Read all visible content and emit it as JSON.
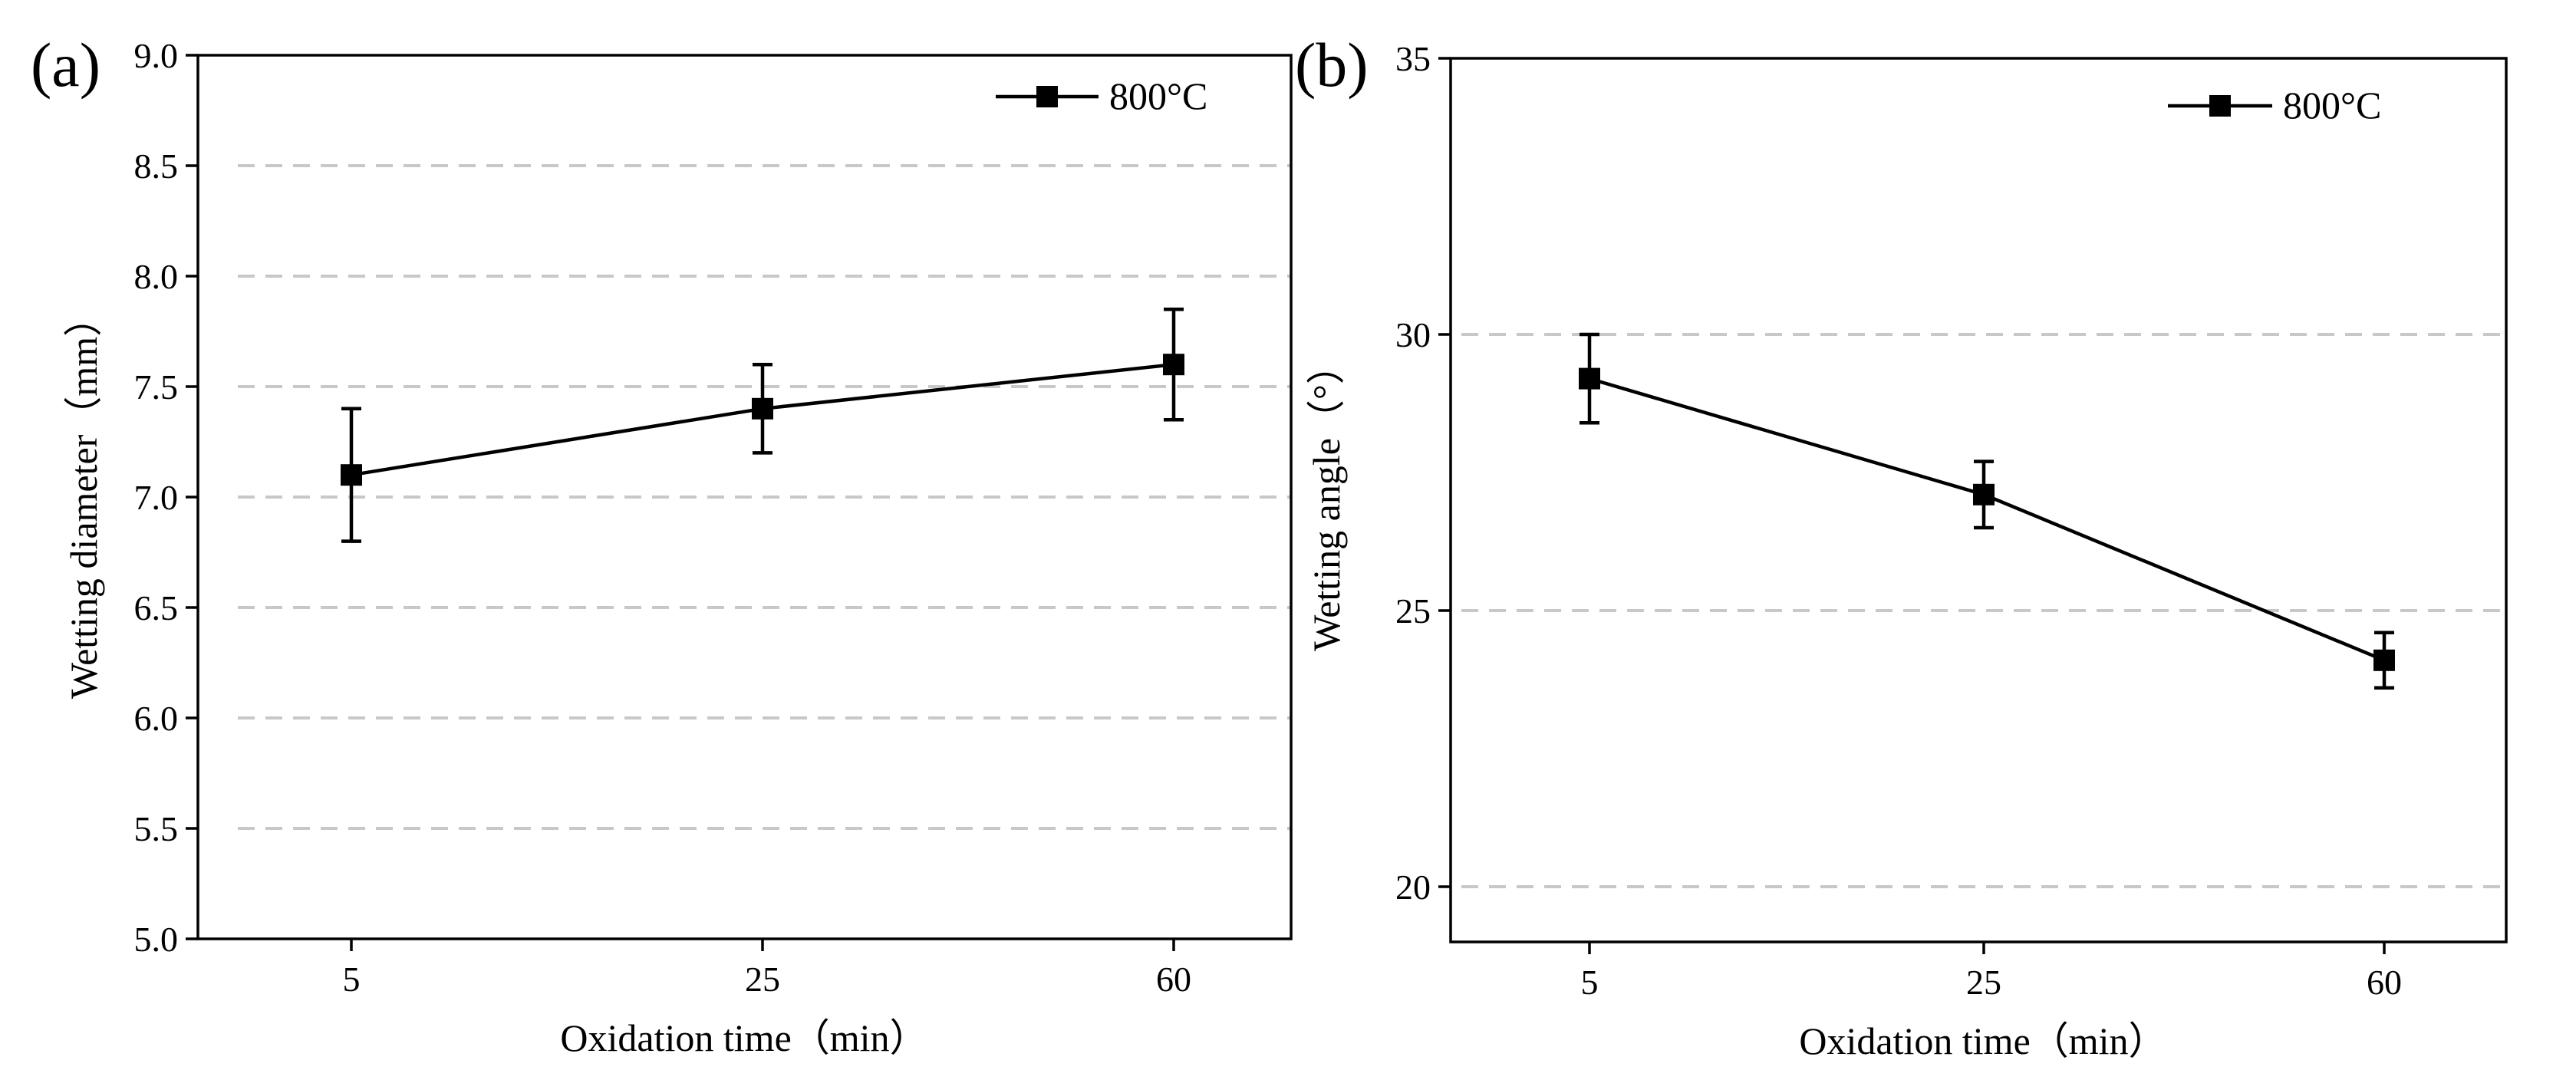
{
  "chart_data": [
    {
      "panel": "(a)",
      "type": "line",
      "xlabel": "Oxidation time（min）",
      "ylabel": "Wetting diameter（mm）",
      "categories": [
        "5",
        "25",
        "60"
      ],
      "ylim": [
        5.0,
        9.0
      ],
      "yticks": [
        "5.0",
        "5.5",
        "6.0",
        "6.5",
        "7.0",
        "7.5",
        "8.0",
        "8.5",
        "9.0"
      ],
      "grid": true,
      "legend_position": "top-right",
      "series": [
        {
          "name": "800°C",
          "values": [
            7.1,
            7.4,
            7.6
          ],
          "errors": [
            0.3,
            0.2,
            0.25
          ]
        }
      ]
    },
    {
      "panel": "(b)",
      "type": "line",
      "xlabel": "Oxidation time（min）",
      "ylabel": "Wetting angle（°）",
      "categories": [
        "5",
        "25",
        "60"
      ],
      "ylim": [
        19,
        35
      ],
      "yticks": [
        "20",
        "25",
        "30",
        "35"
      ],
      "grid": true,
      "legend_position": "top-right",
      "series": [
        {
          "name": "800°C",
          "values": [
            29.2,
            27.1,
            24.1
          ],
          "errors": [
            0.8,
            0.6,
            0.5
          ]
        }
      ]
    }
  ]
}
